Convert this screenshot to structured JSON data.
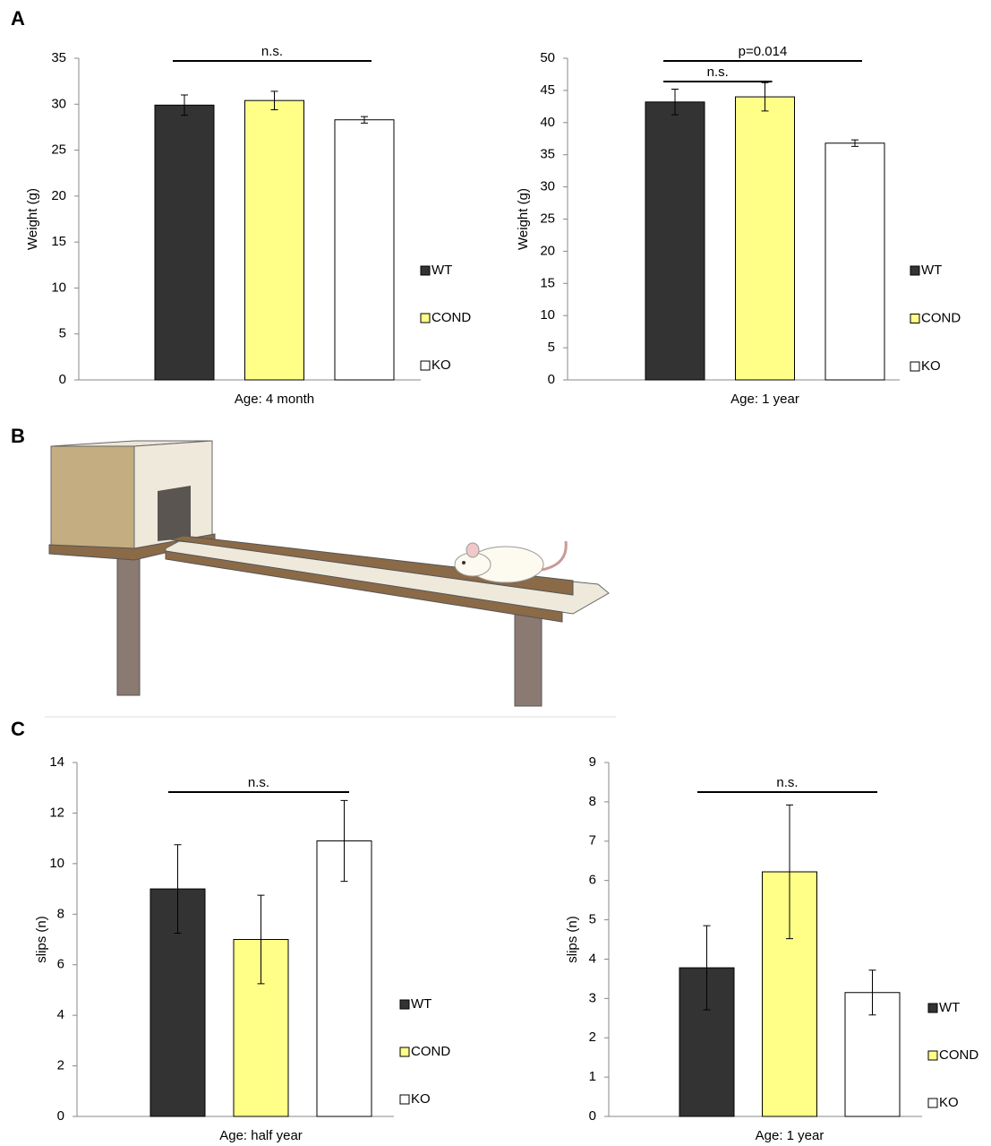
{
  "panel_labels": [
    "A",
    "B",
    "C"
  ],
  "chart_data": [
    {
      "type": "bar",
      "ylabel": "Weight (g)",
      "categories": [
        "Age: 4 month"
      ],
      "ylim": [
        0,
        35
      ],
      "yticks": [
        0,
        5,
        10,
        15,
        20,
        25,
        30,
        35
      ],
      "series": [
        {
          "name": "WT",
          "color": "#333333",
          "values": [
            29.9
          ],
          "errors": [
            1.1
          ]
        },
        {
          "name": "COND",
          "color": "#ffff88",
          "values": [
            30.4
          ],
          "errors": [
            1.0
          ]
        },
        {
          "name": "KO",
          "color": "#ffffff",
          "values": [
            28.3
          ],
          "errors": [
            0.35
          ]
        }
      ],
      "annotations": [
        {
          "text": "n.s."
        }
      ]
    },
    {
      "type": "bar",
      "ylabel": "Weight (g)",
      "categories": [
        "Age: 1 year"
      ],
      "ylim": [
        0,
        50
      ],
      "yticks": [
        0,
        5,
        10,
        15,
        20,
        25,
        30,
        35,
        40,
        45,
        50
      ],
      "series": [
        {
          "name": "WT",
          "color": "#333333",
          "values": [
            43.2
          ],
          "errors": [
            2.0
          ]
        },
        {
          "name": "COND",
          "color": "#ffff88",
          "values": [
            44.0
          ],
          "errors": [
            2.2
          ]
        },
        {
          "name": "KO",
          "color": "#ffffff",
          "values": [
            36.8
          ],
          "errors": [
            0.5
          ]
        }
      ],
      "annotations": [
        {
          "text": "p=0.014"
        },
        {
          "text": "n.s."
        }
      ]
    },
    {
      "type": "bar",
      "ylabel": "slips (n)",
      "categories": [
        "Age: half year"
      ],
      "ylim": [
        0,
        14
      ],
      "yticks": [
        0,
        2,
        4,
        6,
        8,
        10,
        12,
        14
      ],
      "series": [
        {
          "name": "WT",
          "color": "#333333",
          "values": [
            9.0
          ],
          "errors": [
            1.75
          ]
        },
        {
          "name": "COND",
          "color": "#ffff88",
          "values": [
            7.0
          ],
          "errors": [
            1.75
          ]
        },
        {
          "name": "KO",
          "color": "#ffffff",
          "values": [
            10.9
          ],
          "errors": [
            1.6
          ]
        }
      ],
      "annotations": [
        {
          "text": "n.s."
        }
      ]
    },
    {
      "type": "bar",
      "ylabel": "slips (n)",
      "categories": [
        "Age: 1 year"
      ],
      "ylim": [
        0,
        9
      ],
      "yticks": [
        0,
        1,
        2,
        3,
        4,
        5,
        6,
        7,
        8,
        9
      ],
      "series": [
        {
          "name": "WT",
          "color": "#333333",
          "values": [
            3.78
          ],
          "errors": [
            1.07
          ]
        },
        {
          "name": "COND",
          "color": "#ffff88",
          "values": [
            6.22
          ],
          "errors": [
            1.7
          ]
        },
        {
          "name": "KO",
          "color": "#ffffff",
          "values": [
            3.15
          ],
          "errors": [
            0.57
          ]
        }
      ],
      "annotations": [
        {
          "text": "n.s."
        }
      ]
    }
  ]
}
